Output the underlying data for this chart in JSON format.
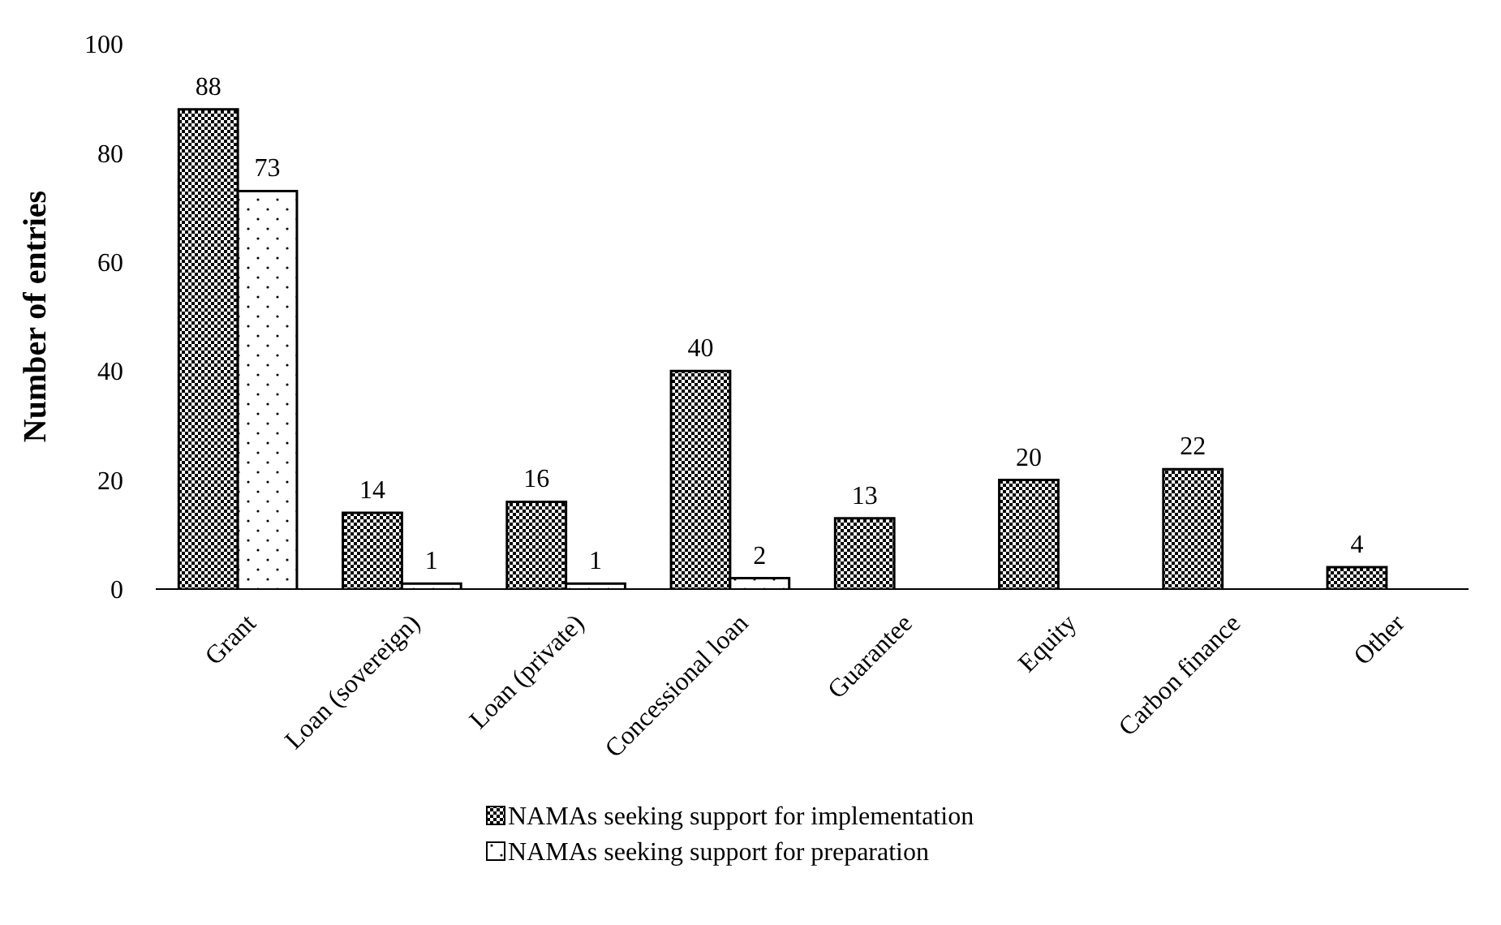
{
  "chart_data": {
    "type": "bar",
    "ylabel": "Number of entries",
    "categories": [
      "Grant",
      "Loan (sovereign)",
      "Loan (private)",
      "Concessional loan",
      "Guarantee",
      "Equity",
      "Carbon finance",
      "Other"
    ],
    "series": [
      {
        "name": "NAMAs seeking support for implementation",
        "color": "#000000",
        "values": [
          88,
          14,
          16,
          40,
          13,
          20,
          22,
          4
        ]
      },
      {
        "name": "NAMAs seeking support for preparation",
        "color": "#ffffff",
        "values": [
          73,
          1,
          1,
          2,
          null,
          null,
          null,
          null
        ]
      }
    ],
    "ylim": [
      0,
      100
    ],
    "yticks": [
      0,
      20,
      40,
      60,
      80,
      100
    ],
    "grid": false,
    "legend": "bottom",
    "data_labels": true
  }
}
